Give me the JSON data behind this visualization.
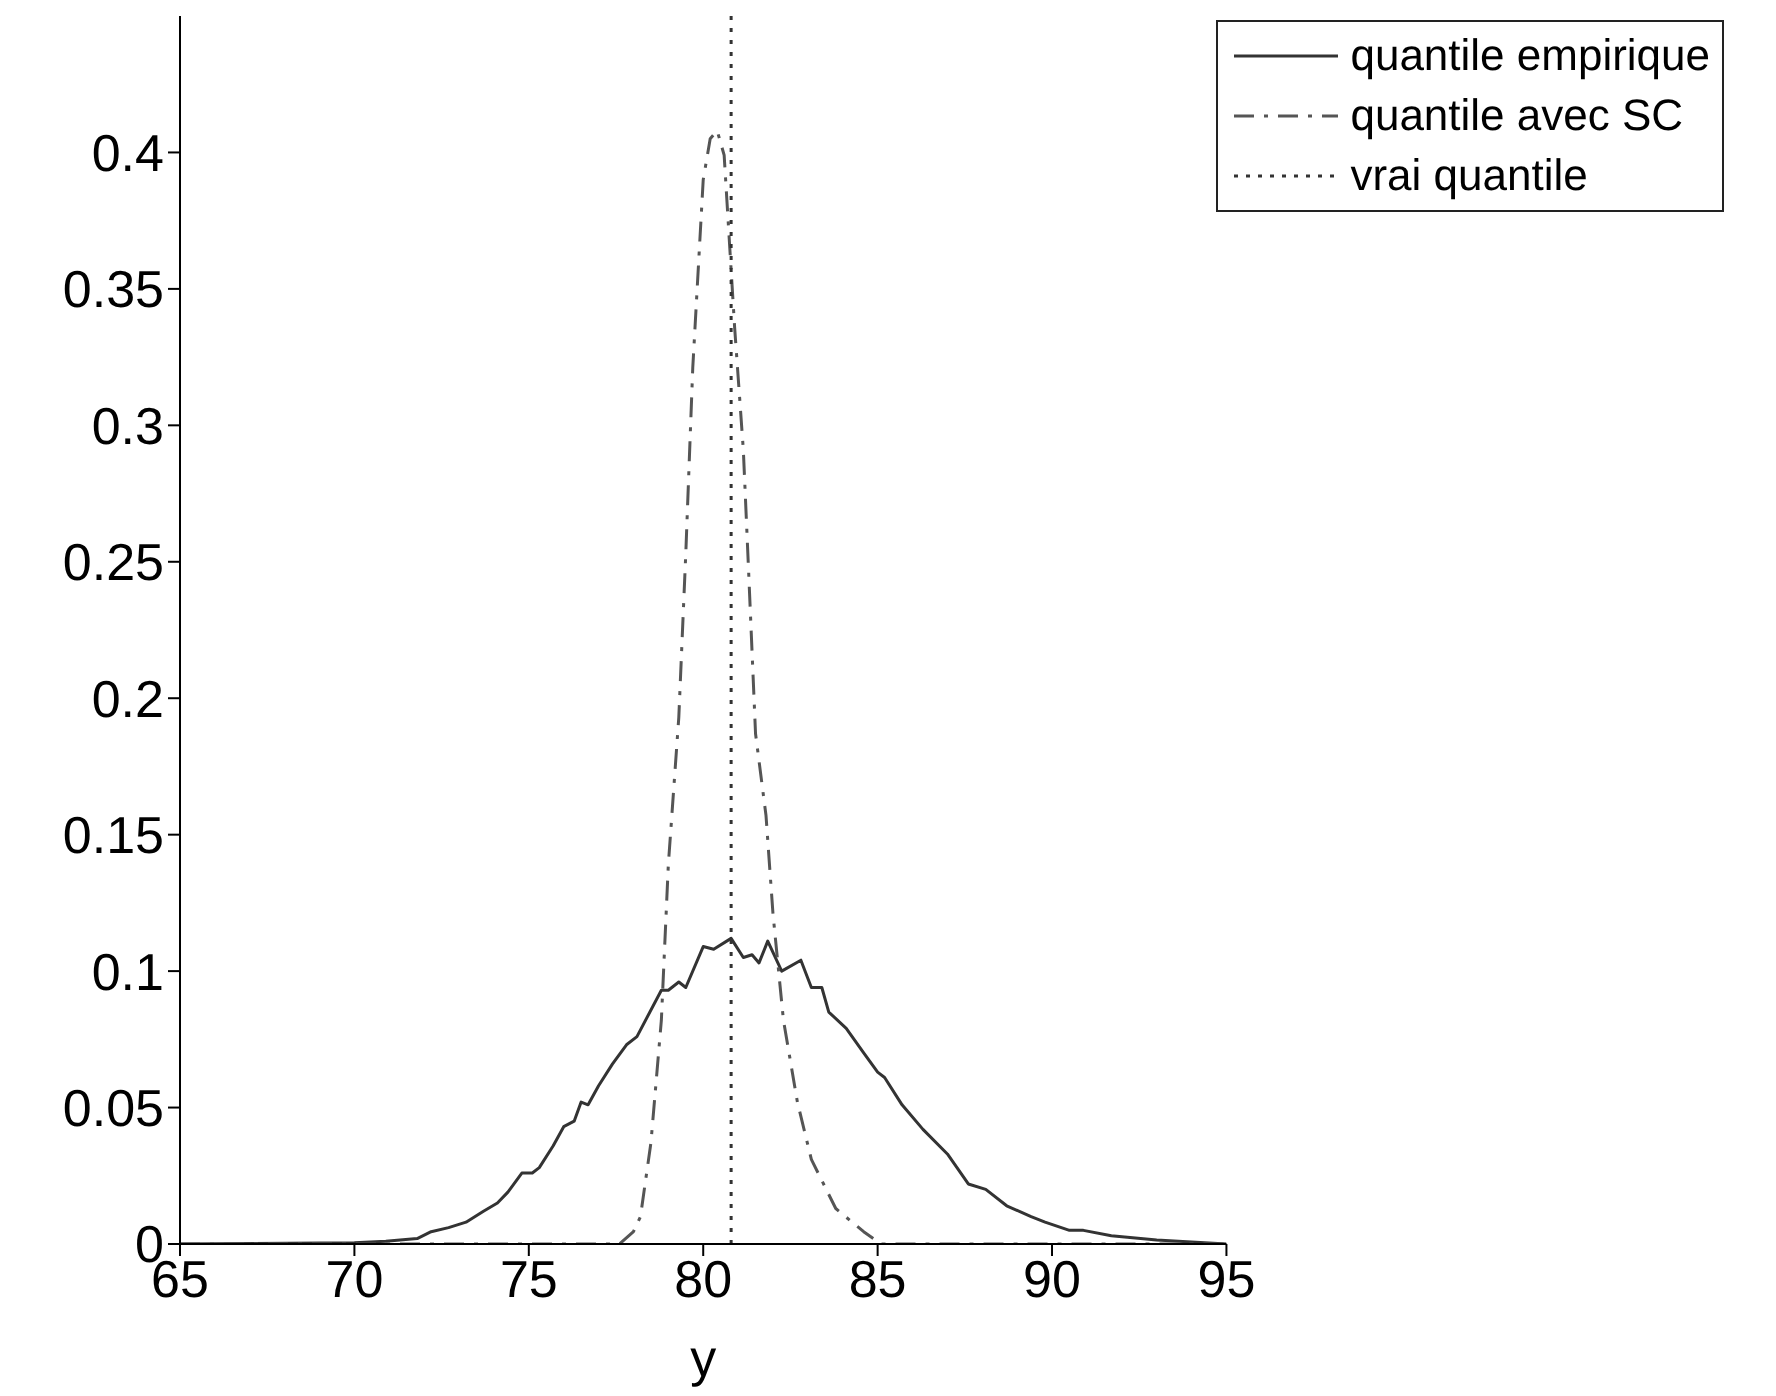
{
  "chart_data": {
    "type": "line",
    "xlabel": "y",
    "xlim": [
      65,
      95
    ],
    "xticks": [
      65,
      70,
      75,
      80,
      85,
      90,
      95
    ],
    "ylim": [
      0,
      0.45
    ],
    "yticks": [
      0,
      0.05,
      0.1,
      0.15,
      0.2,
      0.25,
      0.3,
      0.35,
      0.4
    ],
    "grid": false,
    "legend": "top right",
    "marker": "none",
    "series": [
      {
        "name": "quantile empirique",
        "color": "#333333",
        "line_style": "solid",
        "x": [
          65,
          70,
          70.9,
          71.8,
          72.2,
          72.7,
          73.2,
          73.7,
          74.1,
          74.4,
          74.8,
          75.1,
          75.3,
          75.7,
          76.0,
          76.3,
          76.5,
          76.7,
          77.0,
          77.4,
          77.8,
          78.1,
          78.8,
          79.0,
          79.3,
          79.5,
          80.0,
          80.3,
          80.8,
          81.15,
          81.4,
          81.6,
          81.85,
          82.25,
          82.8,
          83.1,
          83.4,
          83.6,
          84.1,
          84.6,
          85.0,
          85.2,
          85.7,
          86.3,
          87.0,
          87.6,
          88.1,
          88.7,
          89.4,
          89.8,
          90.5,
          90.9,
          91.7,
          93.0,
          95
        ],
        "values": [
          0,
          0.0005,
          0.001,
          0.002,
          0.0045,
          0.006,
          0.008,
          0.012,
          0.015,
          0.019,
          0.026,
          0.026,
          0.028,
          0.036,
          0.043,
          0.045,
          0.052,
          0.051,
          0.058,
          0.066,
          0.073,
          0.076,
          0.093,
          0.093,
          0.096,
          0.094,
          0.109,
          0.108,
          0.112,
          0.105,
          0.106,
          0.103,
          0.111,
          0.1,
          0.104,
          0.094,
          0.094,
          0.085,
          0.079,
          0.07,
          0.063,
          0.061,
          0.051,
          0.042,
          0.033,
          0.022,
          0.02,
          0.014,
          0.01,
          0.008,
          0.005,
          0.005,
          0.003,
          0.0015,
          0
        ]
      },
      {
        "name": "quantile avec SC",
        "color": "#555555",
        "line_style": "dashdot",
        "x": [
          65,
          77.6,
          78.0,
          78.2,
          78.5,
          78.8,
          79.0,
          79.3,
          79.5,
          79.7,
          80.0,
          80.2,
          80.4,
          80.6,
          80.9,
          81.15,
          81.3,
          81.5,
          81.8,
          82.0,
          82.3,
          82.7,
          83.1,
          83.8,
          84.6,
          85.1,
          95
        ],
        "values": [
          0,
          0,
          0.0045,
          0.01,
          0.037,
          0.082,
          0.139,
          0.193,
          0.253,
          0.321,
          0.39,
          0.405,
          0.408,
          0.399,
          0.336,
          0.291,
          0.247,
          0.187,
          0.157,
          0.121,
          0.082,
          0.052,
          0.031,
          0.013,
          0.0045,
          0,
          0
        ]
      },
      {
        "name": "vrai quantile",
        "color": "#333333",
        "line_style": "dotted",
        "x": [
          80.8,
          80.8
        ],
        "values": [
          0,
          0.45
        ]
      }
    ]
  }
}
